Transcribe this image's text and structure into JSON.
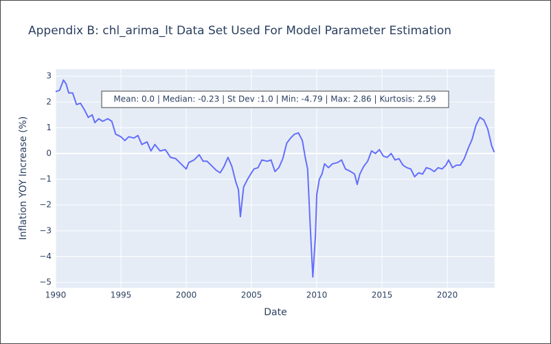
{
  "chart_data": {
    "type": "line",
    "title": "Appendix B: chl_arima_lt Data Set Used For Model Parameter Estimation",
    "annotation": "Mean: 0.0 | Median: -0.23 | St Dev :1.0 | Min: -4.79 | Max: 2.86 | Kurtosis: 2.59",
    "x_label": "Date",
    "y_label": "Inflation YOY Increase (%)",
    "xlim": [
      1990,
      2023.63
    ],
    "xticks": [
      1990,
      1995,
      2000,
      2005,
      2010,
      2015,
      2020
    ],
    "ylim": [
      -5.21,
      3.27
    ],
    "yticks": [
      {
        "value": -5,
        "label": "−5"
      },
      {
        "value": -4,
        "label": "−4"
      },
      {
        "value": -3,
        "label": "−3"
      },
      {
        "value": -2,
        "label": "−2"
      },
      {
        "value": -1,
        "label": "−1"
      },
      0,
      1,
      2,
      3
    ],
    "grid": true,
    "series": [
      {
        "color": "#636efa",
        "x": [
          1990.0,
          1990.3,
          1990.6,
          1990.8,
          1991.0,
          1991.3,
          1991.6,
          1991.9,
          1992.2,
          1992.5,
          1992.8,
          1993.0,
          1993.3,
          1993.6,
          1994.0,
          1994.3,
          1994.6,
          1995.0,
          1995.3,
          1995.6,
          1996.0,
          1996.3,
          1996.6,
          1997.0,
          1997.3,
          1997.6,
          1998.0,
          1998.4,
          1998.8,
          1999.2,
          1999.6,
          2000.0,
          2000.2,
          2000.6,
          2001.0,
          2001.3,
          2001.6,
          2002.0,
          2002.3,
          2002.6,
          2002.9,
          2003.2,
          2003.5,
          2003.8,
          2004.0,
          2004.15,
          2004.4,
          2004.7,
          2005.0,
          2005.2,
          2005.5,
          2005.8,
          2006.2,
          2006.5,
          2006.8,
          2007.1,
          2007.4,
          2007.7,
          2008.0,
          2008.3,
          2008.6,
          2008.9,
          2009.1,
          2009.3,
          2009.5,
          2009.7,
          2009.9,
          2010.0,
          2010.2,
          2010.4,
          2010.6,
          2010.9,
          2011.2,
          2011.6,
          2011.9,
          2012.2,
          2012.6,
          2012.9,
          2013.1,
          2013.3,
          2013.6,
          2013.9,
          2014.2,
          2014.5,
          2014.8,
          2015.1,
          2015.4,
          2015.7,
          2016.0,
          2016.3,
          2016.6,
          2016.9,
          2017.2,
          2017.5,
          2017.8,
          2018.1,
          2018.4,
          2018.7,
          2019.0,
          2019.3,
          2019.6,
          2019.9,
          2020.1,
          2020.4,
          2020.7,
          2021.0,
          2021.3,
          2021.6,
          2021.9,
          2022.2,
          2022.5,
          2022.8,
          2023.1,
          2023.4,
          2023.6
        ],
        "values": [
          2.4,
          2.45,
          2.85,
          2.7,
          2.35,
          2.35,
          1.9,
          1.95,
          1.7,
          1.4,
          1.5,
          1.2,
          1.35,
          1.25,
          1.35,
          1.25,
          0.75,
          0.65,
          0.5,
          0.65,
          0.6,
          0.7,
          0.35,
          0.45,
          0.1,
          0.35,
          0.1,
          0.15,
          -0.15,
          -0.2,
          -0.4,
          -0.6,
          -0.35,
          -0.25,
          -0.05,
          -0.3,
          -0.3,
          -0.5,
          -0.65,
          -0.75,
          -0.5,
          -0.15,
          -0.5,
          -1.1,
          -1.4,
          -2.45,
          -1.3,
          -1.0,
          -0.75,
          -0.6,
          -0.55,
          -0.25,
          -0.3,
          -0.25,
          -0.7,
          -0.55,
          -0.2,
          0.4,
          0.6,
          0.75,
          0.8,
          0.5,
          -0.1,
          -0.6,
          -2.8,
          -4.79,
          -3.2,
          -1.6,
          -1.0,
          -0.8,
          -0.4,
          -0.55,
          -0.4,
          -0.35,
          -0.25,
          -0.6,
          -0.7,
          -0.8,
          -1.2,
          -0.8,
          -0.5,
          -0.3,
          0.1,
          0.0,
          0.15,
          -0.1,
          -0.15,
          0.0,
          -0.25,
          -0.2,
          -0.45,
          -0.55,
          -0.6,
          -0.9,
          -0.75,
          -0.8,
          -0.55,
          -0.6,
          -0.7,
          -0.55,
          -0.6,
          -0.45,
          -0.25,
          -0.55,
          -0.45,
          -0.45,
          -0.2,
          0.2,
          0.55,
          1.1,
          1.4,
          1.3,
          0.95,
          0.3,
          0.05
        ]
      }
    ]
  }
}
